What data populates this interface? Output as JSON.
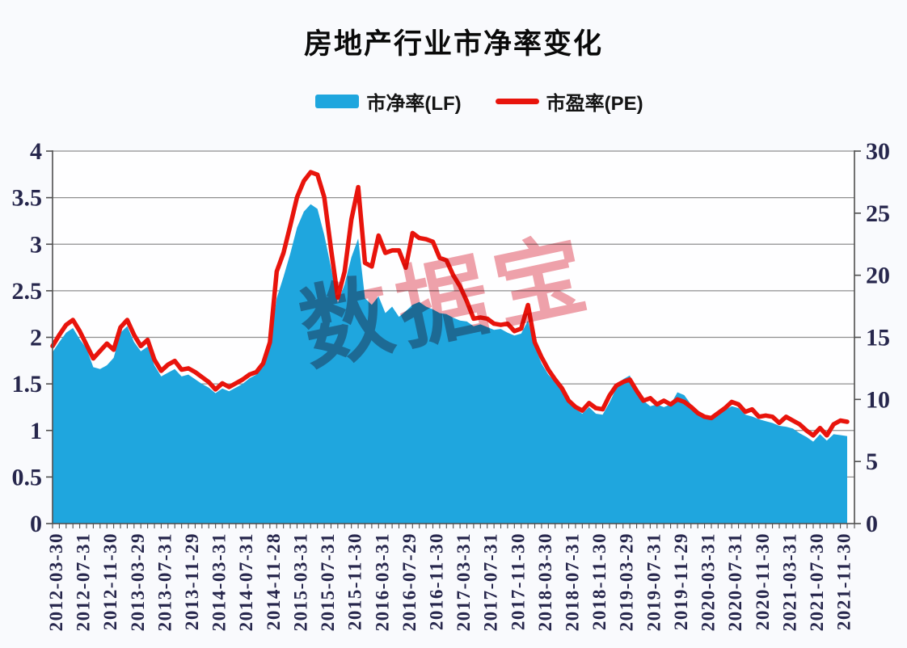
{
  "title": "房地产行业市净率变化",
  "watermark": "数据宝",
  "legend": [
    {
      "label": "市净率(LF)",
      "color": "#1fa6de",
      "type": "area"
    },
    {
      "label": "市盈率(PE)",
      "color": "#e8140c",
      "type": "line"
    }
  ],
  "colors": {
    "blue_area": "#1fa6de",
    "red_line": "#e8140c",
    "grid": "#8f8f8f",
    "spine": "#4f4f4f",
    "tick_label": "#26264c",
    "watermark_pink": "#efa2aa",
    "background": "#f9fafd",
    "plot_background": "#fefeff"
  },
  "chart_data": {
    "type": "area+line",
    "title": "房地产行业市净率变化",
    "grid": "horizontal",
    "legend_position": "top-center",
    "points_per_label": 4,
    "x_tick_labels": [
      "2012-03-30",
      "2012-07-31",
      "2012-11-30",
      "2013-03-29",
      "2013-07-31",
      "2013-11-29",
      "2014-03-31",
      "2014-07-31",
      "2014-11-28",
      "2015-03-31",
      "2015-07-31",
      "2015-11-30",
      "2016-03-31",
      "2016-07-29",
      "2016-11-30",
      "2017-03-31",
      "2017-07-31",
      "2017-11-30",
      "2018-03-30",
      "2018-07-31",
      "2018-11-30",
      "2019-03-29",
      "2019-07-31",
      "2019-11-29",
      "2020-03-31",
      "2020-07-31",
      "2020-11-30",
      "2021-03-31",
      "2021-07-30",
      "2021-11-30"
    ],
    "left_axis": {
      "min": 0,
      "max": 4,
      "step": 0.5,
      "ticks": [
        "0",
        "0.5",
        "1",
        "1.5",
        "2",
        "2.5",
        "3",
        "3.5",
        "4"
      ]
    },
    "right_axis": {
      "min": 0,
      "max": 30,
      "step": 5,
      "ticks": [
        "0",
        "5",
        "10",
        "15",
        "20",
        "25",
        "30"
      ]
    },
    "series": [
      {
        "name": "市净率(LF)",
        "axis": "left",
        "type": "area",
        "color": "#1fa6de",
        "values": [
          1.84,
          1.95,
          2.05,
          2.1,
          1.98,
          1.88,
          1.68,
          1.66,
          1.7,
          1.78,
          2.05,
          2.12,
          1.95,
          1.85,
          1.9,
          1.7,
          1.58,
          1.62,
          1.66,
          1.58,
          1.6,
          1.55,
          1.5,
          1.46,
          1.4,
          1.45,
          1.42,
          1.46,
          1.5,
          1.56,
          1.6,
          1.68,
          1.9,
          2.42,
          2.65,
          2.9,
          3.18,
          3.35,
          3.43,
          3.38,
          3.1,
          2.75,
          2.37,
          2.57,
          2.86,
          3.06,
          2.42,
          2.35,
          2.44,
          2.26,
          2.33,
          2.22,
          2.28,
          2.35,
          2.38,
          2.33,
          2.3,
          2.26,
          2.25,
          2.21,
          2.18,
          2.17,
          2.12,
          2.14,
          2.11,
          2.08,
          2.09,
          2.05,
          2.02,
          2.04,
          2.18,
          1.9,
          1.72,
          1.6,
          1.52,
          1.42,
          1.3,
          1.23,
          1.18,
          1.25,
          1.18,
          1.17,
          1.3,
          1.45,
          1.55,
          1.59,
          1.42,
          1.32,
          1.26,
          1.28,
          1.25,
          1.28,
          1.41,
          1.38,
          1.28,
          1.18,
          1.13,
          1.15,
          1.18,
          1.22,
          1.26,
          1.24,
          1.17,
          1.15,
          1.12,
          1.1,
          1.08,
          1.05,
          1.04,
          1.02,
          0.97,
          0.93,
          0.88,
          0.96,
          0.89,
          0.96,
          0.95,
          0.94
        ]
      },
      {
        "name": "市盈率(PE)",
        "axis": "right",
        "type": "line",
        "color": "#e8140c",
        "values": [
          14.3,
          15.2,
          16.0,
          16.4,
          15.5,
          14.4,
          13.3,
          13.9,
          14.5,
          14.0,
          15.8,
          16.4,
          15.2,
          14.3,
          14.8,
          13.2,
          12.3,
          12.8,
          13.1,
          12.4,
          12.5,
          12.2,
          11.8,
          11.4,
          10.8,
          11.3,
          11.0,
          11.3,
          11.6,
          12.0,
          12.2,
          12.9,
          14.6,
          20.3,
          21.8,
          24.0,
          26.3,
          27.6,
          28.3,
          28.1,
          26.3,
          22.1,
          18.2,
          20.3,
          24.5,
          27.1,
          21.0,
          20.7,
          23.2,
          21.8,
          22.0,
          22.0,
          20.6,
          23.4,
          23.0,
          22.9,
          22.7,
          21.4,
          21.2,
          20.0,
          19.1,
          17.9,
          16.5,
          16.6,
          16.5,
          16.1,
          16.0,
          16.1,
          15.5,
          15.7,
          17.6,
          14.6,
          13.4,
          12.4,
          11.6,
          10.9,
          9.9,
          9.4,
          9.1,
          9.7,
          9.3,
          9.2,
          10.3,
          11.1,
          11.4,
          11.6,
          10.7,
          9.9,
          10.1,
          9.6,
          9.9,
          9.6,
          10.0,
          9.8,
          9.4,
          8.9,
          8.6,
          8.5,
          8.9,
          9.3,
          9.8,
          9.6,
          9.0,
          9.2,
          8.6,
          8.7,
          8.6,
          8.1,
          8.6,
          8.3,
          8.0,
          7.5,
          7.1,
          7.7,
          7.1,
          8.0,
          8.3,
          8.2
        ]
      }
    ]
  }
}
